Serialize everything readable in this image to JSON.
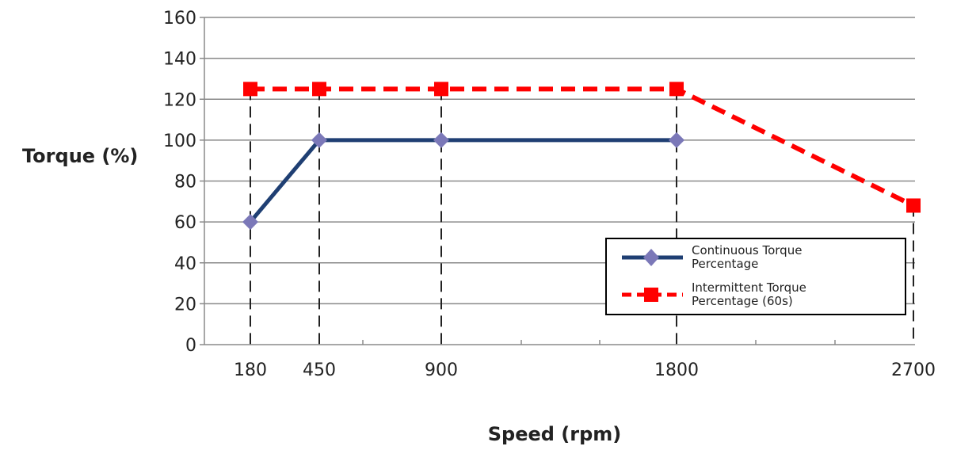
{
  "chart_data": {
    "type": "line",
    "xlabel": "Speed (rpm)",
    "ylabel": "Torque (%)",
    "ylim": [
      0,
      160
    ],
    "yticks": [
      0,
      20,
      40,
      60,
      80,
      100,
      120,
      140,
      160
    ],
    "x_tick_labels": [
      "180",
      "450",
      "900",
      "1800",
      "2700"
    ],
    "x_axis_note": "tick labels are categorical positions, not linearly spaced",
    "grid": "horizontal",
    "legend_position": "lower-right",
    "series": [
      {
        "name": "Continuous Torque Percentage",
        "name_lines": [
          "Continuous Torque",
          "Percentage"
        ],
        "color": "#1f3f73",
        "marker": "diamond",
        "marker_color": "#7b78b8",
        "line_style": "solid",
        "points": [
          {
            "x": "180",
            "y": 60
          },
          {
            "x": "450",
            "y": 100
          },
          {
            "x": "900",
            "y": 100
          },
          {
            "x": "1800",
            "y": 100
          }
        ]
      },
      {
        "name": "Intermittent Torque Percentage (60s)",
        "name_lines": [
          "Intermittent Torque",
          "Percentage (60s)"
        ],
        "color": "#ff0000",
        "marker": "square",
        "marker_color": "#ff0000",
        "line_style": "dashed",
        "points": [
          {
            "x": "180",
            "y": 125
          },
          {
            "x": "450",
            "y": 125
          },
          {
            "x": "900",
            "y": 125
          },
          {
            "x": "1800",
            "y": 125
          },
          {
            "x": "2700",
            "y": 68
          }
        ]
      }
    ]
  }
}
